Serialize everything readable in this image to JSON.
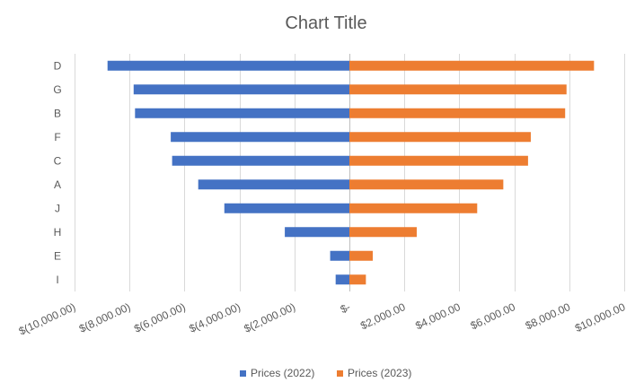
{
  "chart_data": {
    "type": "bar",
    "orientation": "horizontal",
    "title": "Chart Title",
    "categories": [
      "D",
      "G",
      "B",
      "F",
      "C",
      "A",
      "J",
      "H",
      "E",
      "I"
    ],
    "series": [
      {
        "name": "Prices (2022)",
        "color": "#4472C4",
        "values": [
          -8800,
          -7850,
          -7800,
          -6500,
          -6450,
          -5500,
          -4550,
          -2350,
          -700,
          -500
        ]
      },
      {
        "name": "Prices (2023)",
        "color": "#ED7D31",
        "values": [
          8900,
          7900,
          7850,
          6600,
          6500,
          5600,
          4650,
          2450,
          850,
          600
        ]
      }
    ],
    "xlim": [
      -10000,
      10000
    ],
    "x_ticks": [
      -10000,
      -8000,
      -6000,
      -4000,
      -2000,
      0,
      2000,
      4000,
      6000,
      8000,
      10000
    ],
    "x_tick_labels": [
      "$(10,000.00)",
      "$(8,000.00)",
      "$(6,000.00)",
      "$(4,000.00)",
      "$(2,000.00)",
      "$-",
      "$2,000.00",
      "$4,000.00",
      "$6,000.00",
      "$8,000.00",
      "$10,000.00"
    ],
    "grid": true,
    "legend_position": "bottom"
  }
}
